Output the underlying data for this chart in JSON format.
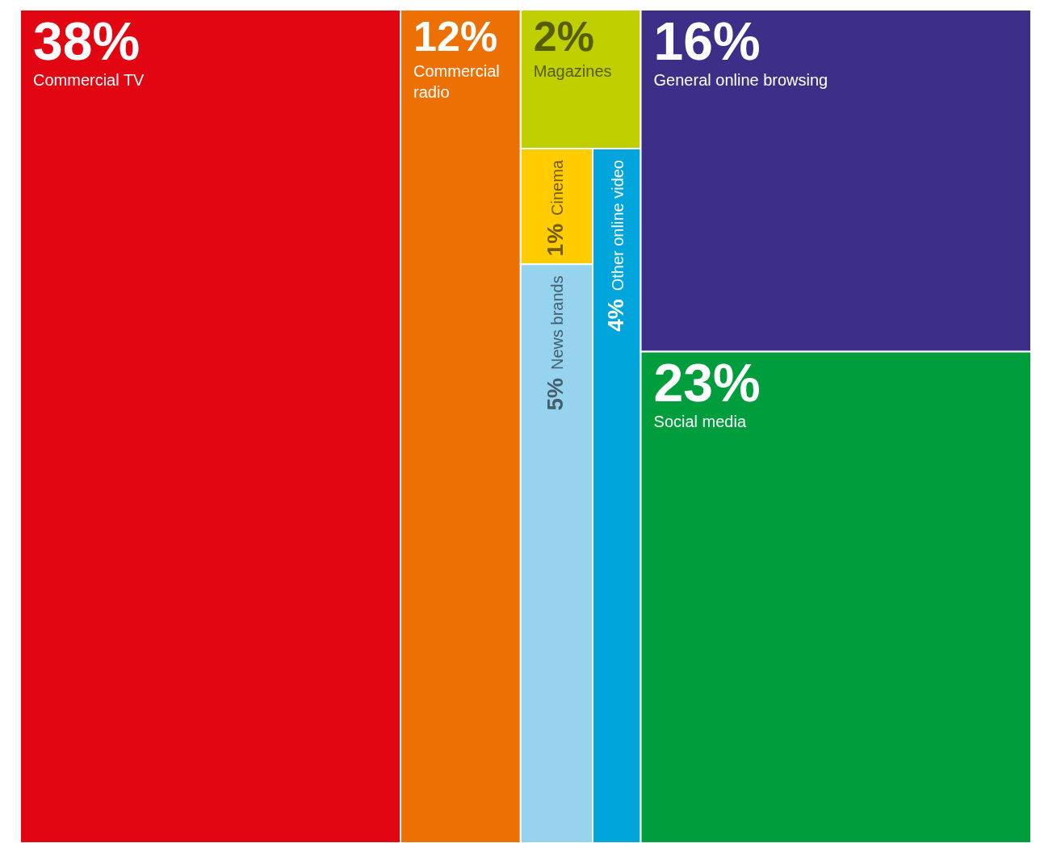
{
  "chart_data": {
    "type": "other",
    "categories": [
      "Commercial TV",
      "Commercial radio",
      "Magazines",
      "Cinema",
      "News brands",
      "Other online video",
      "General online browsing",
      "Social media"
    ],
    "values": [
      38,
      12,
      2,
      1,
      5,
      4,
      16,
      23
    ],
    "value_labels": [
      "38%",
      "12%",
      "2%",
      "1%",
      "5%",
      "4%",
      "16%",
      "23%"
    ],
    "colors": [
      "#e20613",
      "#ec7004",
      "#bfcf00",
      "#ffcc00",
      "#96d3ef",
      "#00a5dc",
      "#3d2f88",
      "#009d3c"
    ]
  }
}
